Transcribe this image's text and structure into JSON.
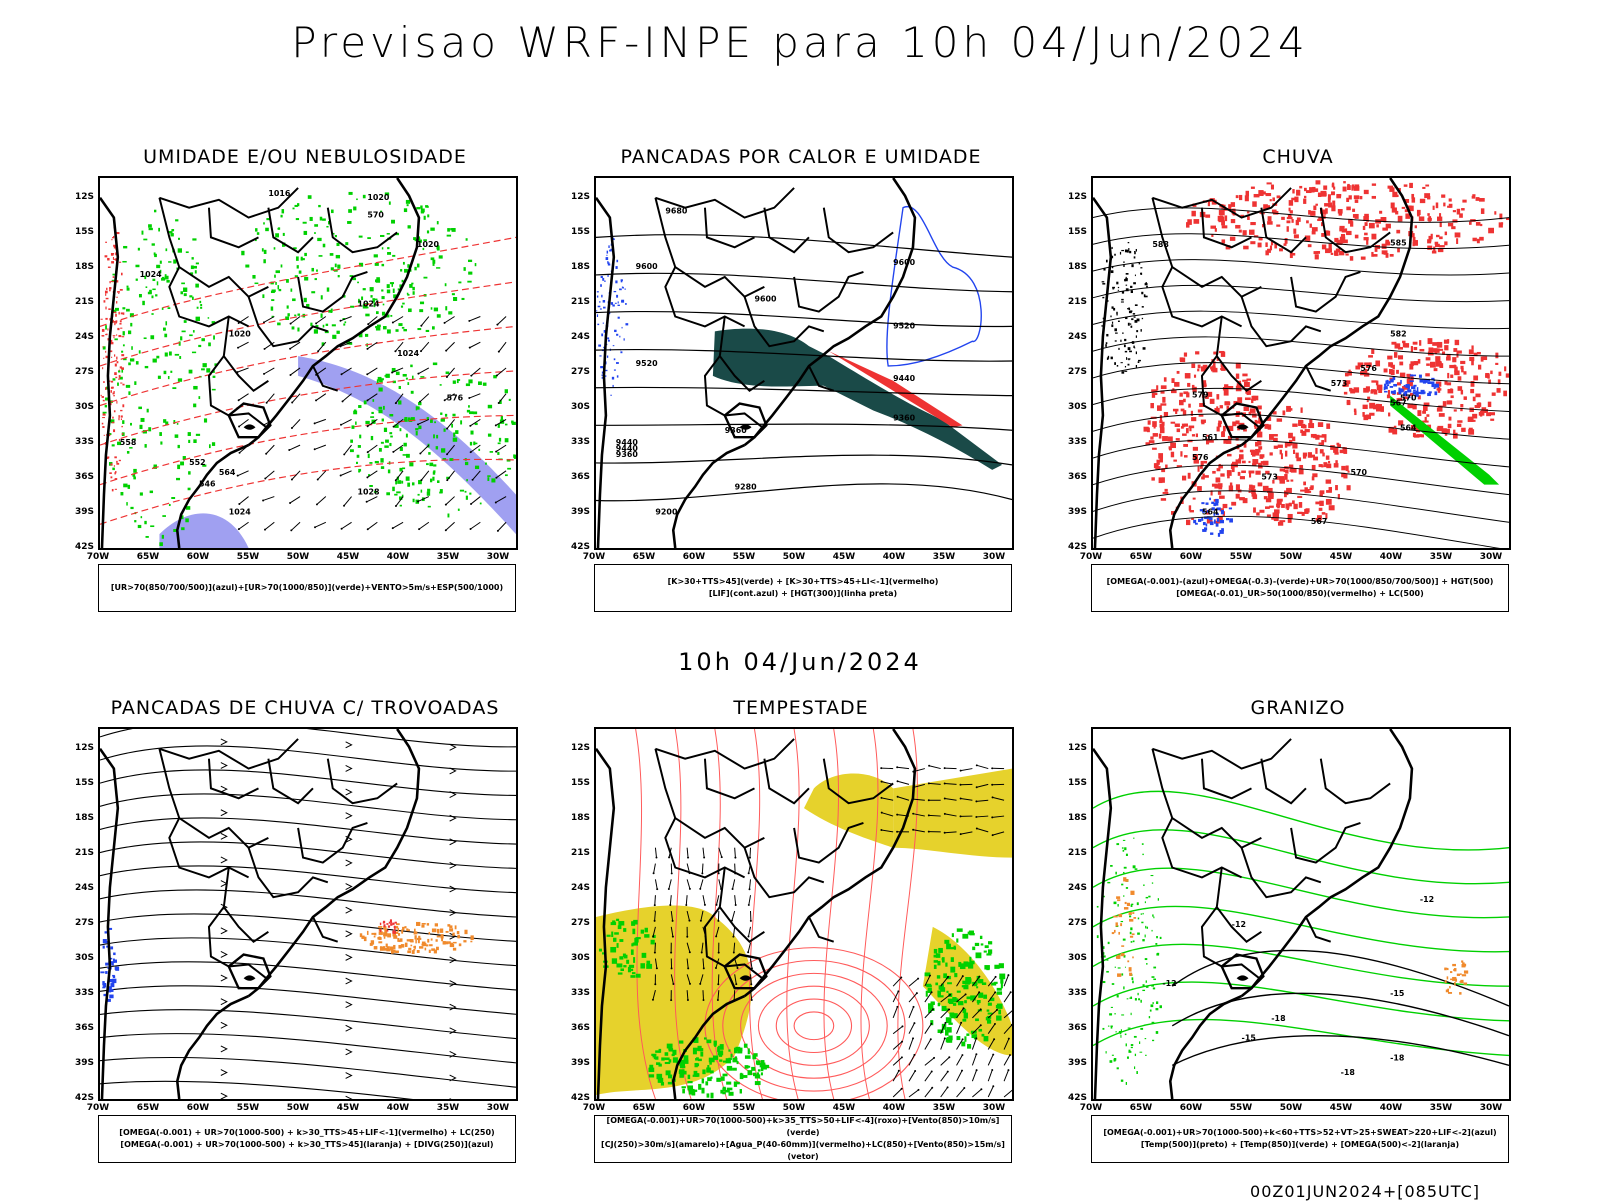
{
  "header": {
    "title": "Previsao WRF-INPE  para 10h 04/Jun/2024",
    "mid_date": "10h 04/Jun/2024",
    "footer": "00Z01JUN2024+[085UTC]"
  },
  "axes": {
    "lat_labels": [
      "12S",
      "15S",
      "18S",
      "21S",
      "24S",
      "27S",
      "30S",
      "33S",
      "36S",
      "39S",
      "42S"
    ],
    "lon_labels": [
      "70W",
      "65W",
      "60W",
      "55W",
      "50W",
      "45W",
      "40W",
      "35W",
      "30W"
    ]
  },
  "colors": {
    "green": "#00d000",
    "red": "#ee3333",
    "blue": "#2244ee",
    "lavender": "#8888ee",
    "darkteal": "#1a4a48",
    "yellow": "#e6d22c",
    "orange": "#f08a2c",
    "salmon": "#ff5a5a"
  },
  "panels": [
    {
      "id": "umidade",
      "title": "UMIDADE E/OU NEBULOSIDADE",
      "legend": [
        "[UR>70(850/700/500)](azul)+[UR>70(1000/850)](verde)+VENTO>5m/s+ESP(500/1000)"
      ],
      "contour_labels": [
        "1016",
        "1020",
        "1020",
        "1024",
        "1024",
        "1020",
        "570",
        "564",
        "558",
        "552",
        "546",
        "1024",
        "1028",
        "1024",
        "576"
      ]
    },
    {
      "id": "pancadas_calor",
      "title": "PANCADAS POR CALOR E UMIDADE",
      "legend": [
        "[K>30+TTS>45](verde) + [K>30+TTS>45+LI<-1](vermelho)",
        "[LIF](cont.azul) + [HGT(300)](linha preta)"
      ],
      "contour_labels": [
        "9680",
        "9600",
        "9600",
        "9600",
        "9520",
        "9520",
        "9440",
        "9440",
        "9360",
        "9360",
        "9280",
        "9200",
        "9440",
        "9360"
      ]
    },
    {
      "id": "chuva",
      "title": "CHUVA",
      "legend": [
        "[OMEGA(-0.001)-(azul)+OMEGA(-0.3)-(verde)+UR>70(1000/850/700/500)] + HGT(500)",
        "[OMEGA(-0.01)_UR>50(1000/850)(vermelho) + LC(500)"
      ],
      "contour_labels": [
        "588",
        "585",
        "582",
        "579",
        "576",
        "573",
        "570",
        "567",
        "564",
        "561",
        "576",
        "573",
        "570",
        "567",
        "564"
      ]
    },
    {
      "id": "trovoadas",
      "title": "PANCADAS DE CHUVA C/ TROVOADAS",
      "legend": [
        "[OMEGA(-0.001) + UR>70(1000-500) + k>30_TTS>45+LIF<-1](vermelho) + LC(250)",
        "[OMEGA(-0.001) + UR>70(1000-500) + k>30_TTS>45](laranja) + [DIVG(250)](azul)"
      ],
      "contour_labels": []
    },
    {
      "id": "tempestade",
      "title": "TEMPESTADE",
      "legend": [
        "[OMEGA(-0.001)+UR>70(1000-500)+k>35_TTS>50+LIF<-4](roxo)+[Vento(850)>10m/s](verde)",
        "[CJ(250)>30m/s](amarelo)+[Agua_P(40-60mm)](vermelho)+LC(850)+[Vento(850)>15m/s](vetor)"
      ],
      "contour_labels": []
    },
    {
      "id": "granizo",
      "title": "GRANIZO",
      "legend": [
        "[OMEGA(-0.001)+UR>70(1000-500)+k<60+TTS>52+VT>25+SWEAT>220+LIF<-2](azul)",
        "[Temp(500)](preto) + [Temp(850)](verde) + [OMEGA(500)<-2](laranja)"
      ],
      "contour_labels": [
        "-12",
        "-12",
        "-12",
        "-18",
        "-18",
        "-15",
        "-18",
        "-15"
      ]
    }
  ]
}
